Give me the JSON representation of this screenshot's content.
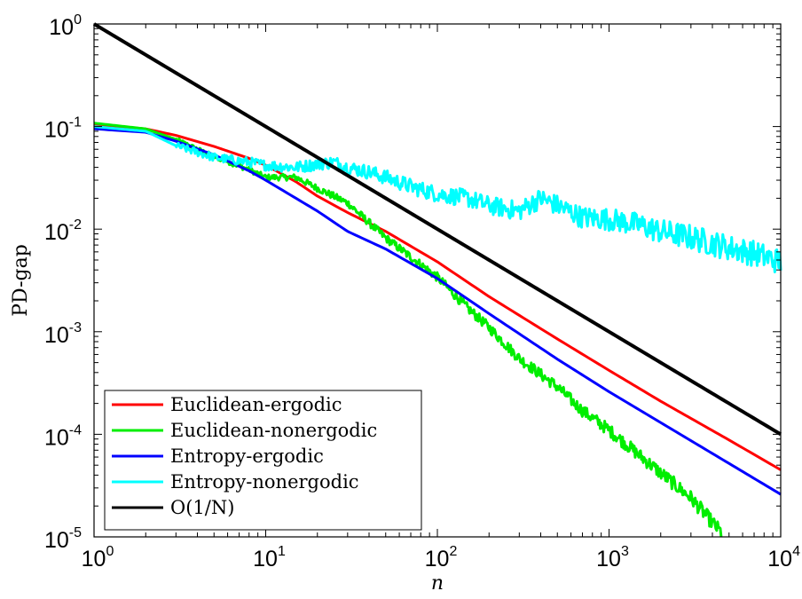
{
  "chart_data": {
    "type": "line",
    "title": "",
    "xlabel": "n",
    "ylabel": "PD-gap",
    "xscale": "log",
    "yscale": "log",
    "xlim": [
      1,
      10000
    ],
    "ylim": [
      1e-05,
      1
    ],
    "grid": false,
    "legend_position": "bottom-left",
    "x_ticks": [
      {
        "base": "10",
        "exp": "0"
      },
      {
        "base": "10",
        "exp": "1"
      },
      {
        "base": "10",
        "exp": "2"
      },
      {
        "base": "10",
        "exp": "3"
      },
      {
        "base": "10",
        "exp": "4"
      }
    ],
    "y_ticks": [
      {
        "base": "10",
        "exp": "-5"
      },
      {
        "base": "10",
        "exp": "-4"
      },
      {
        "base": "10",
        "exp": "-3"
      },
      {
        "base": "10",
        "exp": "-2"
      },
      {
        "base": "10",
        "exp": "-1"
      },
      {
        "base": "10",
        "exp": "0"
      }
    ],
    "series": [
      {
        "name": "Euclidean-ergodic",
        "color": "#ff0000",
        "x": [
          1,
          2,
          3,
          5,
          8,
          10,
          15,
          20,
          30,
          50,
          100,
          200,
          500,
          1000,
          2000,
          5000,
          10000
        ],
        "y": [
          0.105,
          0.095,
          0.082,
          0.064,
          0.049,
          0.042,
          0.029,
          0.021,
          0.0145,
          0.0095,
          0.0048,
          0.0022,
          0.00085,
          0.00042,
          0.00021,
          8.8e-05,
          4.5e-05
        ]
      },
      {
        "name": "Euclidean-nonergodic",
        "color": "#00ee00",
        "x": [
          1,
          2,
          3,
          5,
          8,
          10,
          15,
          20,
          30,
          50,
          100,
          150,
          200,
          300,
          500,
          700,
          1000,
          2000,
          3000,
          4500
        ],
        "y": [
          0.108,
          0.095,
          0.075,
          0.051,
          0.038,
          0.032,
          0.032,
          0.025,
          0.018,
          0.0082,
          0.0034,
          0.0017,
          0.0011,
          0.00055,
          0.00029,
          0.00017,
          0.00011,
          4.2e-05,
          2.4e-05,
          1.1e-05
        ]
      },
      {
        "name": "Entropy-ergodic",
        "color": "#0000ff",
        "x": [
          1,
          2,
          3,
          5,
          8,
          10,
          15,
          20,
          30,
          50,
          100,
          200,
          500,
          1000,
          2000,
          5000,
          10000
        ],
        "y": [
          0.095,
          0.088,
          0.072,
          0.053,
          0.037,
          0.03,
          0.02,
          0.015,
          0.0095,
          0.0064,
          0.0033,
          0.0015,
          0.00054,
          0.00026,
          0.00013,
          5.2e-05,
          2.6e-05
        ]
      },
      {
        "name": "Entropy-nonergodic",
        "color": "#00ffff",
        "x": [
          1,
          2,
          3,
          5,
          8,
          10,
          15,
          20,
          25,
          30,
          40,
          50,
          70,
          100,
          150,
          200,
          300,
          400,
          500,
          700,
          1000,
          1500,
          2000,
          3000,
          5000,
          7000,
          10000
        ],
        "y": [
          0.1,
          0.09,
          0.065,
          0.05,
          0.045,
          0.042,
          0.04,
          0.043,
          0.045,
          0.04,
          0.036,
          0.032,
          0.026,
          0.022,
          0.02,
          0.017,
          0.015,
          0.02,
          0.017,
          0.013,
          0.0125,
          0.011,
          0.0095,
          0.0083,
          0.0066,
          0.0058,
          0.0048
        ]
      },
      {
        "name": "O(1/N)",
        "color": "#000000",
        "x": [
          1,
          10000
        ],
        "y": [
          1,
          0.0001
        ]
      }
    ]
  }
}
